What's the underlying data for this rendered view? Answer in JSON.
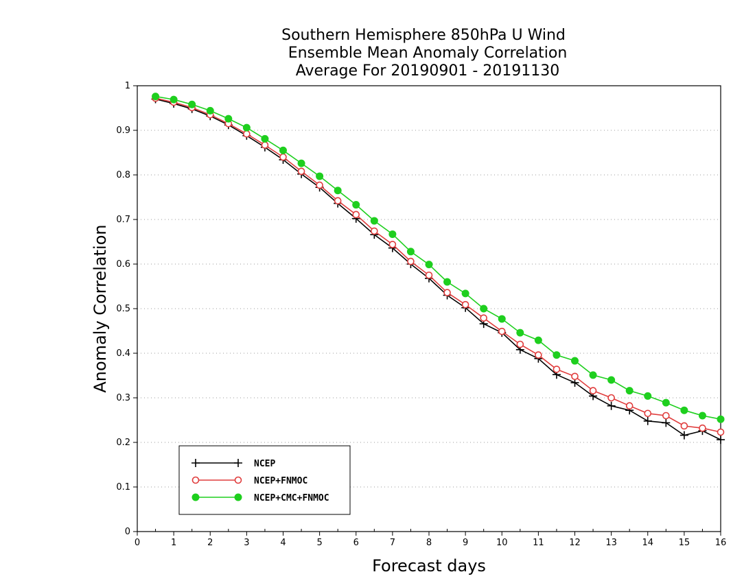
{
  "chart_data": {
    "type": "line",
    "title_lines": [
      "Southern Hemisphere 850hPa U Wind",
      "Ensemble Mean Anomaly Correlation",
      "Average For 20190901 - 20191130"
    ],
    "xlabel": "Forecast days",
    "ylabel": "Anomaly Correlation",
    "xlim": [
      0,
      16
    ],
    "ylim": [
      0,
      1
    ],
    "x_ticks": [
      "0",
      "1",
      "2",
      "3",
      "4",
      "5",
      "6",
      "7",
      "8",
      "9",
      "10",
      "11",
      "12",
      "13",
      "14",
      "15",
      "16"
    ],
    "y_ticks": [
      "0",
      "0.1",
      "0.2",
      "0.3",
      "0.4",
      "0.5",
      "0.6",
      "0.7",
      "0.8",
      "0.9",
      "1"
    ],
    "grid": "horizontal dotted",
    "legend_position": "bottom-left",
    "x": [
      0.5,
      1,
      1.5,
      2,
      2.5,
      3,
      3.5,
      4,
      4.5,
      5,
      5.5,
      6,
      6.5,
      7,
      7.5,
      8,
      8.5,
      9,
      9.5,
      10,
      10.5,
      11,
      11.5,
      12,
      12.5,
      13,
      13.5,
      14,
      14.5,
      15,
      15.5,
      16
    ],
    "series": [
      {
        "name": "NCEP",
        "color": "#000000",
        "marker": "plus",
        "values": [
          0.97,
          0.96,
          0.948,
          0.932,
          0.912,
          0.888,
          0.862,
          0.834,
          0.802,
          0.772,
          0.736,
          0.702,
          0.666,
          0.636,
          0.6,
          0.568,
          0.53,
          0.502,
          0.466,
          0.446,
          0.408,
          0.388,
          0.352,
          0.334,
          0.304,
          0.282,
          0.272,
          0.248,
          0.244,
          0.216,
          0.226,
          0.206
        ]
      },
      {
        "name": "NCEP+FNMOC",
        "color": "#e03c3c",
        "marker": "open-circle",
        "values": [
          0.972,
          0.963,
          0.951,
          0.935,
          0.915,
          0.892,
          0.867,
          0.84,
          0.808,
          0.777,
          0.742,
          0.711,
          0.674,
          0.644,
          0.606,
          0.575,
          0.536,
          0.509,
          0.479,
          0.449,
          0.42,
          0.396,
          0.364,
          0.348,
          0.316,
          0.3,
          0.282,
          0.265,
          0.26,
          0.237,
          0.232,
          0.223
        ]
      },
      {
        "name": "NCEP+CMC+FNMOC",
        "color": "#1ecf1e",
        "marker": "filled-circle",
        "values": [
          0.976,
          0.969,
          0.958,
          0.944,
          0.926,
          0.906,
          0.881,
          0.855,
          0.826,
          0.797,
          0.765,
          0.733,
          0.697,
          0.667,
          0.628,
          0.599,
          0.56,
          0.534,
          0.5,
          0.477,
          0.446,
          0.429,
          0.396,
          0.383,
          0.351,
          0.34,
          0.316,
          0.304,
          0.289,
          0.272,
          0.26,
          0.252
        ]
      }
    ]
  }
}
